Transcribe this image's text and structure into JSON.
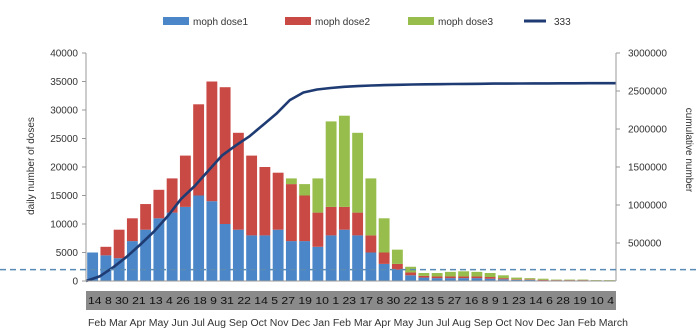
{
  "chart_data": {
    "type": "bar",
    "legend": {
      "placement": "top",
      "entries": [
        {
          "name": "moph dose1",
          "color": "#4a86c8",
          "kind": "bar"
        },
        {
          "name": "moph dose2",
          "color": "#c94a45",
          "kind": "bar"
        },
        {
          "name": "moph dose3",
          "color": "#97bd4c",
          "kind": "bar"
        },
        {
          "name": "333",
          "color": "#1f3b73",
          "kind": "line"
        }
      ]
    },
    "ylabel": "daily number of doses",
    "y2label": "cumulative number",
    "ylim": [
      0,
      40000
    ],
    "y2lim": [
      0,
      3000000
    ],
    "yticks": [
      "40000",
      "35000",
      "30000",
      "25000",
      "20000",
      "15000",
      "10000",
      "5000",
      "0"
    ],
    "y2ticks": [
      "3000000",
      "2500000",
      "2000000",
      "1500000",
      "1000000",
      "500000"
    ],
    "day_label_row": "14 8 30 21 13 4 26 18 9 31 22 14 5 27 19 10 1 23 17 8 30 22 13 5 27 16 8 9 1 23 14 6 28 19 10 4",
    "month_label_row": "Feb Mar Apr May Jun Jul Aug Sep Oct Nov Dec Jan Feb Mar Apr May Jun Jul Aug Sep Oct Nov Dec Jan Feb March",
    "baseline_dashed_line_value": 2000,
    "period_values": [
      {
        "dose1": 5000,
        "dose2": 0,
        "dose3": 0
      },
      {
        "dose1": 4500,
        "dose2": 1500,
        "dose3": 0
      },
      {
        "dose1": 4000,
        "dose2": 5000,
        "dose3": 0
      },
      {
        "dose1": 7000,
        "dose2": 4000,
        "dose3": 0
      },
      {
        "dose1": 9000,
        "dose2": 4500,
        "dose3": 0
      },
      {
        "dose1": 11000,
        "dose2": 5000,
        "dose3": 0
      },
      {
        "dose1": 12000,
        "dose2": 6000,
        "dose3": 0
      },
      {
        "dose1": 13000,
        "dose2": 9000,
        "dose3": 0
      },
      {
        "dose1": 15000,
        "dose2": 16000,
        "dose3": 0
      },
      {
        "dose1": 14000,
        "dose2": 21000,
        "dose3": 0
      },
      {
        "dose1": 10000,
        "dose2": 24000,
        "dose3": 0
      },
      {
        "dose1": 9000,
        "dose2": 17000,
        "dose3": 0
      },
      {
        "dose1": 8000,
        "dose2": 14000,
        "dose3": 0
      },
      {
        "dose1": 8000,
        "dose2": 12000,
        "dose3": 0
      },
      {
        "dose1": 9000,
        "dose2": 10000,
        "dose3": 0
      },
      {
        "dose1": 7000,
        "dose2": 10000,
        "dose3": 1000
      },
      {
        "dose1": 7000,
        "dose2": 8000,
        "dose3": 2000
      },
      {
        "dose1": 6000,
        "dose2": 6000,
        "dose3": 6000
      },
      {
        "dose1": 8000,
        "dose2": 5000,
        "dose3": 15000
      },
      {
        "dose1": 9000,
        "dose2": 4000,
        "dose3": 16000
      },
      {
        "dose1": 8000,
        "dose2": 4000,
        "dose3": 14000
      },
      {
        "dose1": 5000,
        "dose2": 3000,
        "dose3": 10000
      },
      {
        "dose1": 3000,
        "dose2": 2000,
        "dose3": 6000
      },
      {
        "dose1": 2000,
        "dose2": 1000,
        "dose3": 2500
      },
      {
        "dose1": 1000,
        "dose2": 500,
        "dose3": 1000
      },
      {
        "dose1": 600,
        "dose2": 300,
        "dose3": 500
      },
      {
        "dose1": 500,
        "dose2": 300,
        "dose3": 600
      },
      {
        "dose1": 500,
        "dose2": 300,
        "dose3": 800
      },
      {
        "dose1": 500,
        "dose2": 300,
        "dose3": 900
      },
      {
        "dose1": 500,
        "dose2": 300,
        "dose3": 800
      },
      {
        "dose1": 400,
        "dose2": 300,
        "dose3": 700
      },
      {
        "dose1": 300,
        "dose2": 200,
        "dose3": 500
      },
      {
        "dose1": 200,
        "dose2": 100,
        "dose3": 300
      },
      {
        "dose1": 200,
        "dose2": 100,
        "dose3": 200
      },
      {
        "dose1": 100,
        "dose2": 100,
        "dose3": 200
      },
      {
        "dose1": 100,
        "dose2": 50,
        "dose3": 100
      },
      {
        "dose1": 100,
        "dose2": 50,
        "dose3": 100
      },
      {
        "dose1": 100,
        "dose2": 50,
        "dose3": 100
      },
      {
        "dose1": 50,
        "dose2": 50,
        "dose3": 50
      },
      {
        "dose1": 50,
        "dose2": 50,
        "dose3": 50
      }
    ],
    "cumulative_line": [
      0,
      60000,
      180000,
      320000,
      480000,
      650000,
      850000,
      1080000,
      1250000,
      1450000,
      1650000,
      1780000,
      1900000,
      2050000,
      2200000,
      2380000,
      2480000,
      2520000,
      2540000,
      2555000,
      2565000,
      2572000,
      2578000,
      2582000,
      2585000,
      2588000,
      2590000,
      2592000,
      2594000,
      2595000,
      2597000,
      2598000,
      2599000,
      2600000,
      2600500,
      2601000,
      2601500,
      2602000,
      2602500,
      2603000
    ]
  }
}
